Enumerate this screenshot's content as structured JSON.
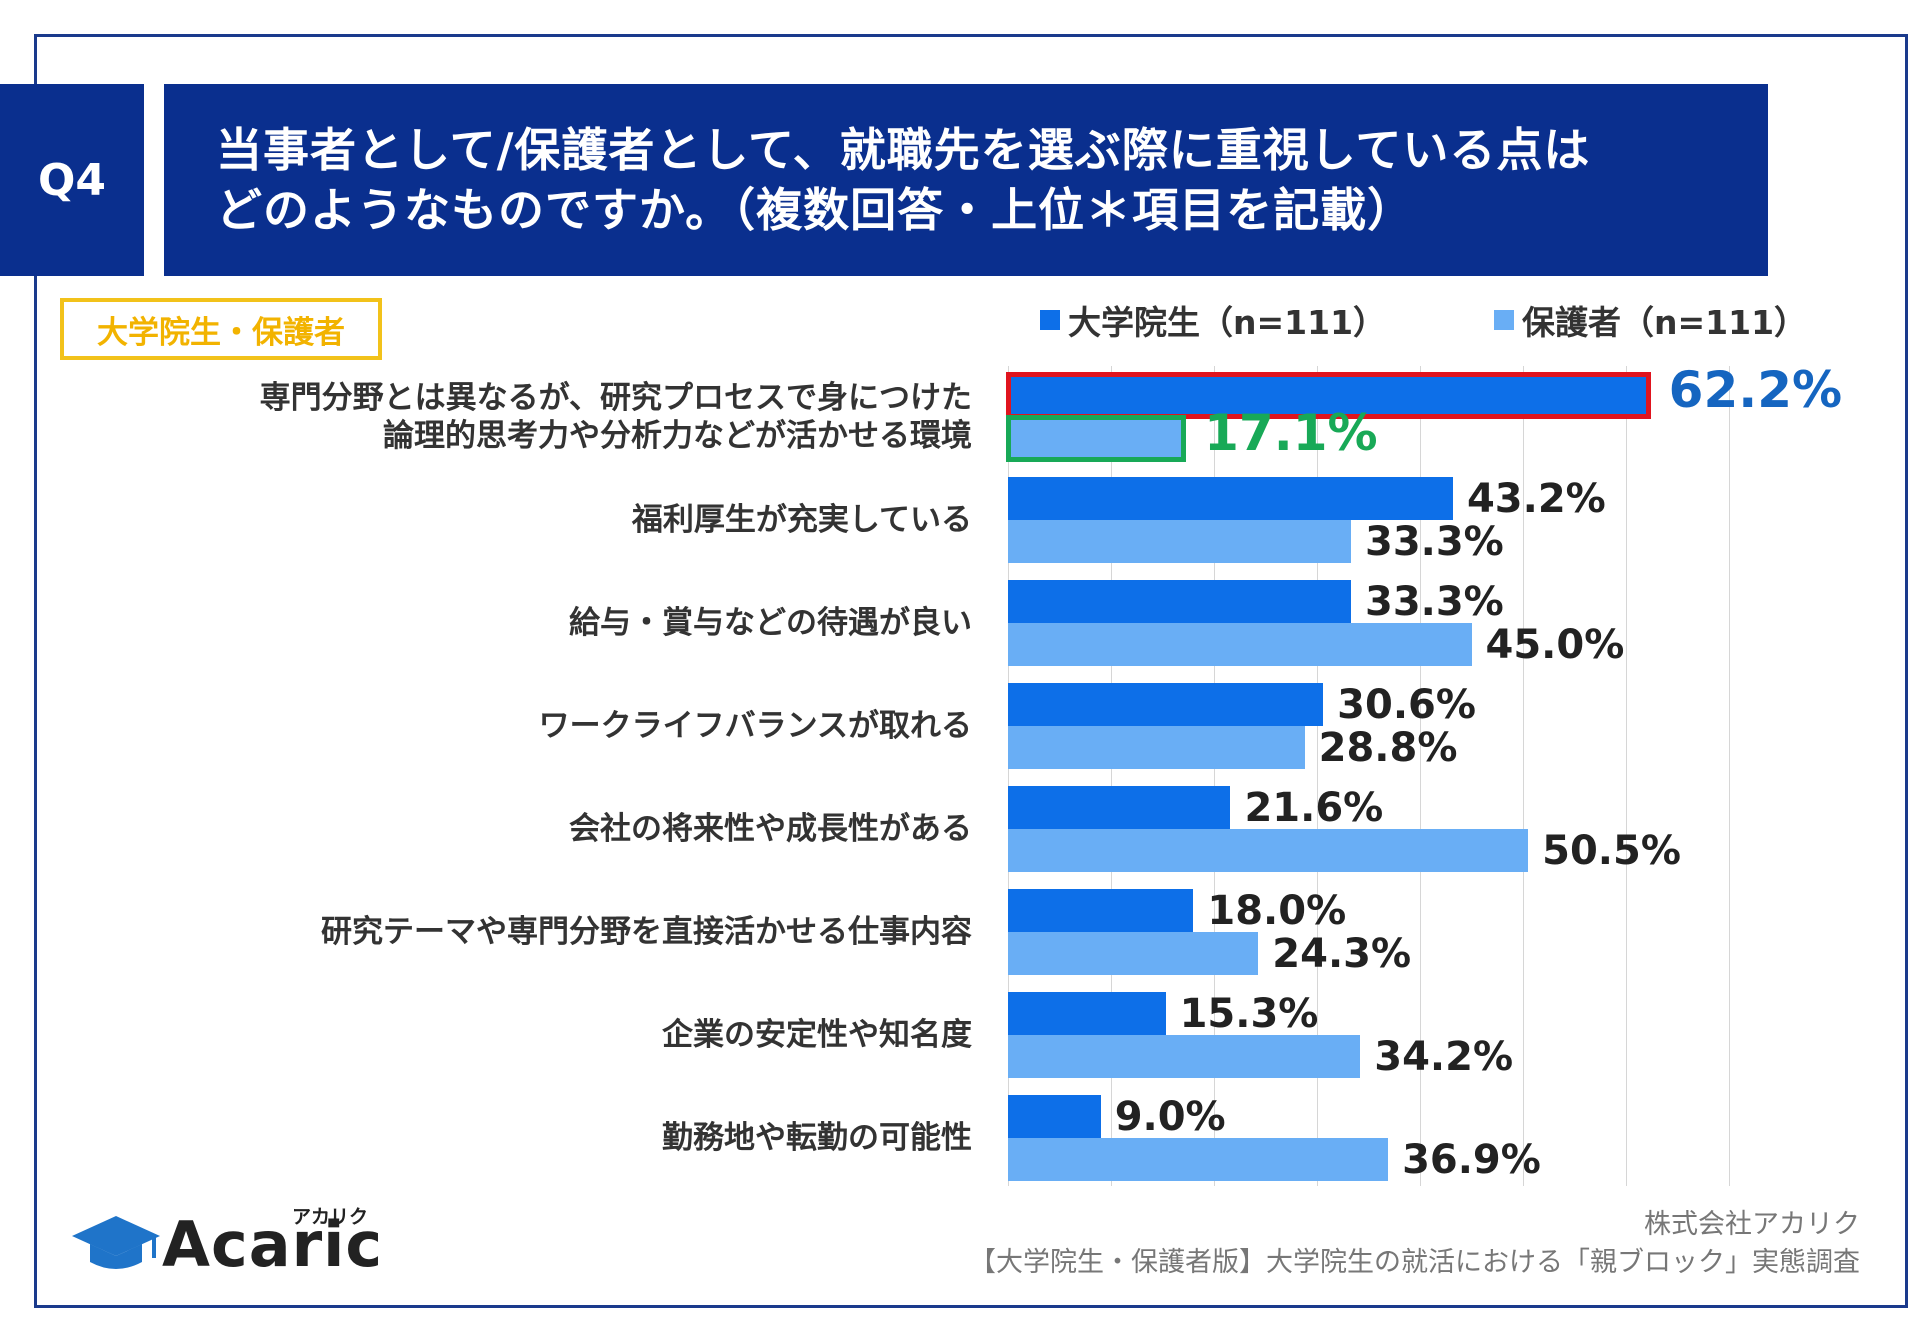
{
  "header": {
    "q_label": "Q4",
    "title_line1": "当事者として/保護者として、就職先を選ぶ際に重視している点は",
    "title_line2": "どのようなものですか。（複数回答・上位＊項目を記載）"
  },
  "tag": "大学院生・保護者",
  "legend": [
    {
      "label": "大学院生（n=111）",
      "color": "#0d6fe8"
    },
    {
      "label": "保護者（n=111）",
      "color": "#69aef5"
    }
  ],
  "chart_data": {
    "type": "bar",
    "orientation": "horizontal",
    "categories": [
      [
        "専門分野とは異なるが、研究プロセスで身につけた",
        "論理的思考力や分析力などが活かせる環境"
      ],
      [
        "福利厚生が充実している"
      ],
      [
        "給与・賞与などの待遇が良い"
      ],
      [
        "ワークライフバランスが取れる"
      ],
      [
        "会社の将来性や成長性がある"
      ],
      [
        "研究テーマや専門分野を直接活かせる仕事内容"
      ],
      [
        "企業の安定性や知名度"
      ],
      [
        "勤務地や転勤の可能性"
      ]
    ],
    "series": [
      {
        "name": "大学院生（n=111）",
        "color": "#0d6fe8",
        "values": [
          62.2,
          43.2,
          33.3,
          30.6,
          21.6,
          18.0,
          15.3,
          9.0
        ],
        "labels": [
          "62.2%",
          "43.2%",
          "33.3%",
          "30.6%",
          "21.6%",
          "18.0%",
          "15.3%",
          "9.0%"
        ]
      },
      {
        "name": "保護者（n=111）",
        "color": "#69aef5",
        "values": [
          17.1,
          33.3,
          45.0,
          28.8,
          50.5,
          24.3,
          34.2,
          36.9
        ],
        "labels": [
          "17.1%",
          "33.3%",
          "45.0%",
          "28.8%",
          "50.5%",
          "24.3%",
          "34.2%",
          "36.9%"
        ]
      }
    ],
    "xlim": [
      0,
      70
    ],
    "grid": true,
    "highlights": [
      {
        "series": 0,
        "category": 0,
        "border_color": "#e0141e",
        "label_color": "#1565c0"
      },
      {
        "series": 1,
        "category": 0,
        "border_color": "#18a957",
        "label_color": "#18a957"
      }
    ]
  },
  "source": {
    "line1": "株式会社アカリク",
    "line2": "【大学院生・保護者版】大学院生の就活における「親ブロック」実態調査"
  },
  "logo": {
    "text": "Acaric",
    "kana": "アカリク"
  }
}
